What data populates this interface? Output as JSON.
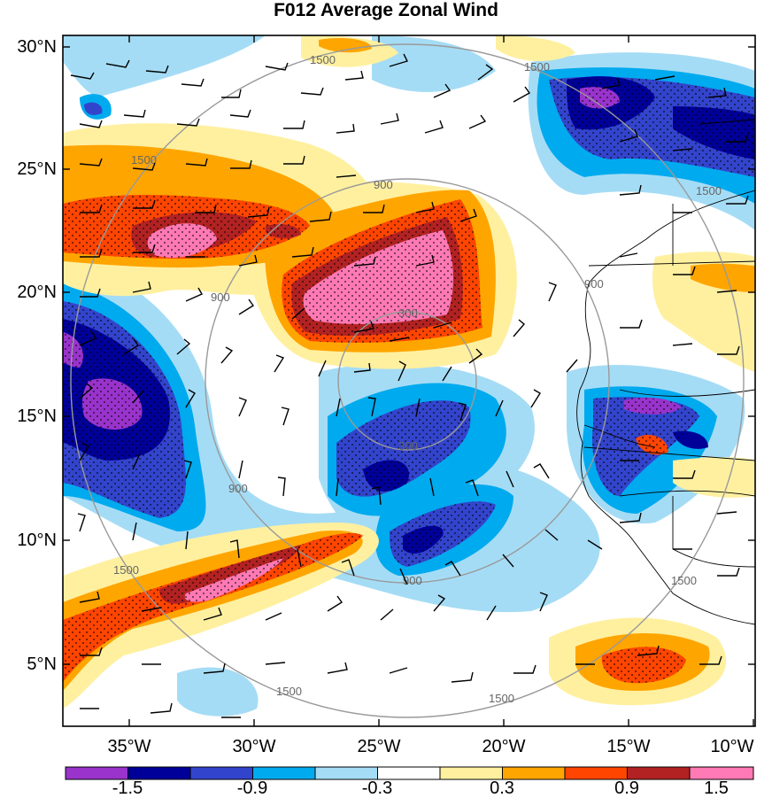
{
  "title": "F012 Average Zonal Wind",
  "lat_labels": [
    "30°N",
    "25°N",
    "20°N",
    "15°N",
    "10°N",
    "5°N"
  ],
  "lon_labels": [
    "35°W",
    "30°W",
    "25°W",
    "20°W",
    "15°W",
    "10°W"
  ],
  "range_ring_labels": [
    "300",
    "900",
    "1500"
  ],
  "colorbar": {
    "colors": [
      "#9933cc",
      "#000099",
      "#3344cc",
      "#00aaee",
      "#a5dcf5",
      "#ffffff",
      "#fff0a0",
      "#ffa500",
      "#ff4500",
      "#b22222",
      "#ff79b4"
    ],
    "labels": [
      "-1.5",
      "-0.9",
      "-0.3",
      "0.3",
      "0.9",
      "1.5"
    ]
  }
}
